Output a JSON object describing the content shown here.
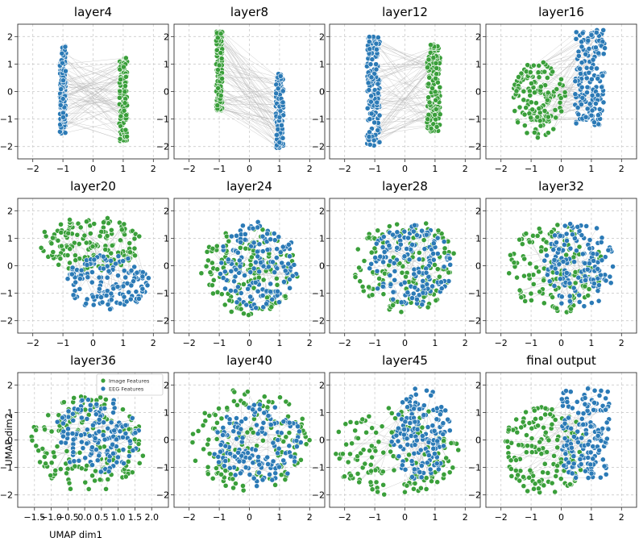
{
  "figure": {
    "xlabel": "UMAP dim1",
    "ylabel": "UMAP dim2",
    "colors": {
      "image": "#3a9f3a",
      "eeg": "#2b7ab6",
      "link": "#b5b5b5",
      "grid": "#cccccc"
    }
  },
  "legend": {
    "panel_index": 8,
    "entries": [
      {
        "label": "Image Features",
        "series": "image"
      },
      {
        "label": "EEG Features",
        "series": "eeg"
      }
    ]
  },
  "chart_data": [
    {
      "type": "scatter",
      "title": "layer4",
      "xlim": [
        -2.5,
        2.5
      ],
      "ylim": [
        -2.45,
        2.45
      ],
      "xticks": [
        -2,
        -1,
        0,
        1,
        2
      ],
      "yticks": [
        -2,
        -1,
        0,
        1,
        2
      ],
      "series": [
        {
          "name": "EEG Features",
          "key": "eeg",
          "n": 150,
          "shape": "rect",
          "center": [
            -1.0,
            0.05
          ],
          "spread": [
            0.1,
            1.6
          ]
        },
        {
          "name": "Image Features",
          "key": "image",
          "n": 140,
          "shape": "rect",
          "center": [
            1.0,
            -0.3
          ],
          "spread": [
            0.13,
            1.55
          ]
        }
      ],
      "links": 70
    },
    {
      "type": "scatter",
      "title": "layer8",
      "xlim": [
        -2.5,
        2.5
      ],
      "ylim": [
        -2.45,
        2.45
      ],
      "xticks": [
        -2,
        -1,
        0,
        1,
        2
      ],
      "yticks": [
        -2,
        -1,
        0,
        1,
        2
      ],
      "series": [
        {
          "name": "Image Features",
          "key": "image",
          "n": 150,
          "shape": "rect",
          "center": [
            -1.0,
            0.75
          ],
          "spread": [
            0.1,
            1.45
          ]
        },
        {
          "name": "EEG Features",
          "key": "eeg",
          "n": 140,
          "shape": "rect",
          "center": [
            1.0,
            -0.7
          ],
          "spread": [
            0.13,
            1.35
          ]
        }
      ],
      "links": 70
    },
    {
      "type": "scatter",
      "title": "layer12",
      "xlim": [
        -2.5,
        2.5
      ],
      "ylim": [
        -2.45,
        2.45
      ],
      "xticks": [
        -2,
        -1,
        0,
        1,
        2
      ],
      "yticks": [
        -2,
        -1,
        0,
        1,
        2
      ],
      "series": [
        {
          "name": "EEG Features",
          "key": "eeg",
          "n": 160,
          "shape": "rect",
          "center": [
            -1.05,
            0.0
          ],
          "spread": [
            0.22,
            2.0
          ]
        },
        {
          "name": "Image Features",
          "key": "image",
          "n": 160,
          "shape": "rect",
          "center": [
            0.95,
            0.15
          ],
          "spread": [
            0.22,
            1.6
          ]
        }
      ],
      "links": 70
    },
    {
      "type": "scatter",
      "title": "layer16",
      "xlim": [
        -2.5,
        2.5
      ],
      "ylim": [
        -2.45,
        2.45
      ],
      "xticks": [
        -2,
        -1,
        0,
        1,
        2
      ],
      "yticks": [
        -2,
        -1,
        0,
        1,
        2
      ],
      "series": [
        {
          "name": "Image Features",
          "key": "image",
          "n": 150,
          "shape": "ellipse",
          "center": [
            -0.75,
            -0.3
          ],
          "spread": [
            0.9,
            1.4
          ]
        },
        {
          "name": "EEG Features",
          "key": "eeg",
          "n": 160,
          "shape": "rect",
          "center": [
            0.95,
            0.5
          ],
          "spread": [
            0.5,
            1.75
          ]
        }
      ],
      "links": 70
    },
    {
      "type": "scatter",
      "title": "layer20",
      "xlim": [
        -2.5,
        2.5
      ],
      "ylim": [
        -2.45,
        2.45
      ],
      "xticks": [
        -2,
        -1,
        0,
        1,
        2
      ],
      "yticks": [
        -2,
        -1,
        0,
        1,
        2
      ],
      "series": [
        {
          "name": "Image Features",
          "key": "image",
          "n": 150,
          "shape": "ellipse",
          "center": [
            -0.1,
            0.8
          ],
          "spread": [
            1.7,
            1.0
          ]
        },
        {
          "name": "EEG Features",
          "key": "eeg",
          "n": 150,
          "shape": "ellipse",
          "center": [
            0.5,
            -0.6
          ],
          "spread": [
            1.4,
            1.0
          ]
        }
      ],
      "links": 60
    },
    {
      "type": "scatter",
      "title": "layer24",
      "xlim": [
        -2.5,
        2.5
      ],
      "ylim": [
        -2.45,
        2.45
      ],
      "xticks": [
        -2,
        -1,
        0,
        1,
        2
      ],
      "yticks": [
        -2,
        -1,
        0,
        1,
        2
      ],
      "series": [
        {
          "name": "Image Features",
          "key": "image",
          "n": 150,
          "shape": "ellipse",
          "center": [
            0.0,
            -0.2
          ],
          "spread": [
            1.6,
            1.6
          ]
        },
        {
          "name": "EEG Features",
          "key": "eeg",
          "n": 150,
          "shape": "ellipse",
          "center": [
            0.3,
            0.0
          ],
          "spread": [
            1.3,
            1.6
          ]
        }
      ],
      "links": 60
    },
    {
      "type": "scatter",
      "title": "layer28",
      "xlim": [
        -2.5,
        2.5
      ],
      "ylim": [
        -2.45,
        2.45
      ],
      "xticks": [
        -2,
        -1,
        0,
        1,
        2
      ],
      "yticks": [
        -2,
        -1,
        0,
        1,
        2
      ],
      "series": [
        {
          "name": "Image Features",
          "key": "image",
          "n": 150,
          "shape": "ellipse",
          "center": [
            0.0,
            0.0
          ],
          "spread": [
            1.7,
            1.7
          ]
        },
        {
          "name": "EEG Features",
          "key": "eeg",
          "n": 150,
          "shape": "ellipse",
          "center": [
            0.2,
            0.0
          ],
          "spread": [
            1.4,
            1.5
          ]
        }
      ],
      "links": 60
    },
    {
      "type": "scatter",
      "title": "layer32",
      "xlim": [
        -2.5,
        2.5
      ],
      "ylim": [
        -2.45,
        2.45
      ],
      "xticks": [
        -2,
        -1,
        0,
        1,
        2
      ],
      "yticks": [
        -2,
        -1,
        0,
        1,
        2
      ],
      "series": [
        {
          "name": "Image Features",
          "key": "image",
          "n": 150,
          "shape": "ellipse",
          "center": [
            -0.2,
            -0.1
          ],
          "spread": [
            1.6,
            1.7
          ]
        },
        {
          "name": "EEG Features",
          "key": "eeg",
          "n": 150,
          "shape": "ellipse",
          "center": [
            0.6,
            0.0
          ],
          "spread": [
            1.2,
            1.6
          ]
        }
      ],
      "links": 60
    },
    {
      "type": "scatter",
      "title": "layer36",
      "xlim": [
        -2.0,
        2.5
      ],
      "ylim": [
        -2.45,
        2.45
      ],
      "xticks": [
        -1.5,
        -1.0,
        -0.5,
        0.0,
        0.5,
        1.0,
        1.5,
        2.0
      ],
      "xticklabels": [
        "−1.5",
        "−1.0",
        "−0.5",
        "0.0",
        "0.5",
        "1.0",
        "1.5",
        "2.0"
      ],
      "yticks": [
        -2,
        -1,
        0,
        1,
        2
      ],
      "series": [
        {
          "name": "Image Features",
          "key": "image",
          "n": 150,
          "shape": "ellipse",
          "center": [
            0.1,
            -0.1
          ],
          "spread": [
            1.7,
            1.8
          ]
        },
        {
          "name": "EEG Features",
          "key": "eeg",
          "n": 150,
          "shape": "ellipse",
          "center": [
            0.4,
            0.2
          ],
          "spread": [
            1.3,
            1.4
          ]
        }
      ],
      "links": 60
    },
    {
      "type": "scatter",
      "title": "layer40",
      "xlim": [
        -2.5,
        2.5
      ],
      "ylim": [
        -2.45,
        2.45
      ],
      "xticks": [
        -2,
        -1,
        0,
        1,
        2
      ],
      "yticks": [
        -2,
        -1,
        0,
        1,
        2
      ],
      "series": [
        {
          "name": "Image Features",
          "key": "image",
          "n": 150,
          "shape": "ellipse",
          "center": [
            0.0,
            0.0
          ],
          "spread": [
            2.0,
            1.9
          ]
        },
        {
          "name": "EEG Features",
          "key": "eeg",
          "n": 150,
          "shape": "ellipse",
          "center": [
            0.3,
            -0.2
          ],
          "spread": [
            1.5,
            1.5
          ]
        }
      ],
      "links": 60
    },
    {
      "type": "scatter",
      "title": "layer45",
      "xlim": [
        -2.5,
        2.5
      ],
      "ylim": [
        -2.45,
        2.45
      ],
      "xticks": [
        -2,
        -1,
        0,
        1,
        2
      ],
      "yticks": [
        -2,
        -1,
        0,
        1,
        2
      ],
      "series": [
        {
          "name": "Image Features",
          "key": "image",
          "n": 150,
          "shape": "ellipse",
          "center": [
            -0.3,
            -0.4
          ],
          "spread": [
            2.1,
            1.7
          ]
        },
        {
          "name": "EEG Features",
          "key": "eeg",
          "n": 150,
          "shape": "ellipse",
          "center": [
            0.55,
            0.2
          ],
          "spread": [
            1.0,
            1.7
          ]
        }
      ],
      "links": 60
    },
    {
      "type": "scatter",
      "title": "final output",
      "xlim": [
        -2.5,
        2.5
      ],
      "ylim": [
        -2.45,
        2.45
      ],
      "xticks": [
        -2,
        -1,
        0,
        1,
        2
      ],
      "yticks": [
        -2,
        -1,
        0,
        1,
        2
      ],
      "series": [
        {
          "name": "Image Features",
          "key": "image",
          "n": 150,
          "shape": "ellipse",
          "center": [
            -0.55,
            -0.4
          ],
          "spread": [
            1.4,
            1.6
          ]
        },
        {
          "name": "EEG Features",
          "key": "eeg",
          "n": 160,
          "shape": "rect",
          "center": [
            0.8,
            0.2
          ],
          "spread": [
            0.8,
            1.7
          ]
        }
      ],
      "links": 60
    }
  ]
}
